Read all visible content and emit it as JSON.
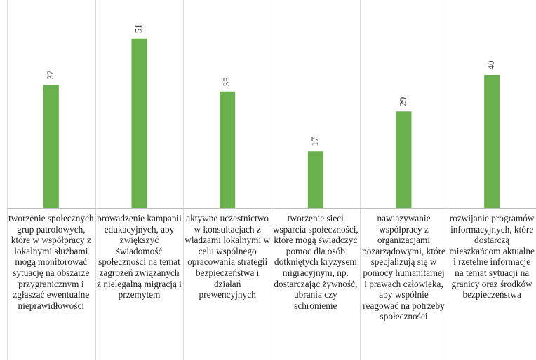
{
  "chart_data": {
    "type": "bar",
    "categories": [
      "tworzenie społecznych grup patrolowych, które w współpracy z lokalnymi służbami mogą monitorować sytuację na obszarze przygranicznym i zgłaszać ewentualne nieprawidłowości",
      "prowadzenie kampanii edukacyjnych, aby zwiększyć świadomość społeczności na temat zagrożeń związanych z nielegalną migracją i przemytem",
      "aktywne uczestnictwo w konsultacjach z władzami lokalnymi w celu wspólnego opracowania strategii bezpieczeństwa i działań prewencyjnych",
      "tworzenie sieci wsparcia społeczności, które mogą świadczyć pomoc dla osób dotkniętych kryzysem migracyjnym, np. dostarczając żywność, ubrania czy schronienie",
      "nawiązywanie współpracy z organizacjami pozarządowymi, które specjalizują się w pomocy humanitarnej i prawach człowieka, aby wspólnie reagować na potrzeby społeczności",
      "rozwijanie programów informacyjnych, które dostarczą mieszkańcom aktualne i rzetelne informacje na temat sytuacji na granicy oraz środków bezpieczeństwa"
    ],
    "values": [
      37,
      51,
      35,
      17,
      29,
      40
    ],
    "color": "#6ab04c",
    "ylim": [
      0,
      60
    ]
  }
}
